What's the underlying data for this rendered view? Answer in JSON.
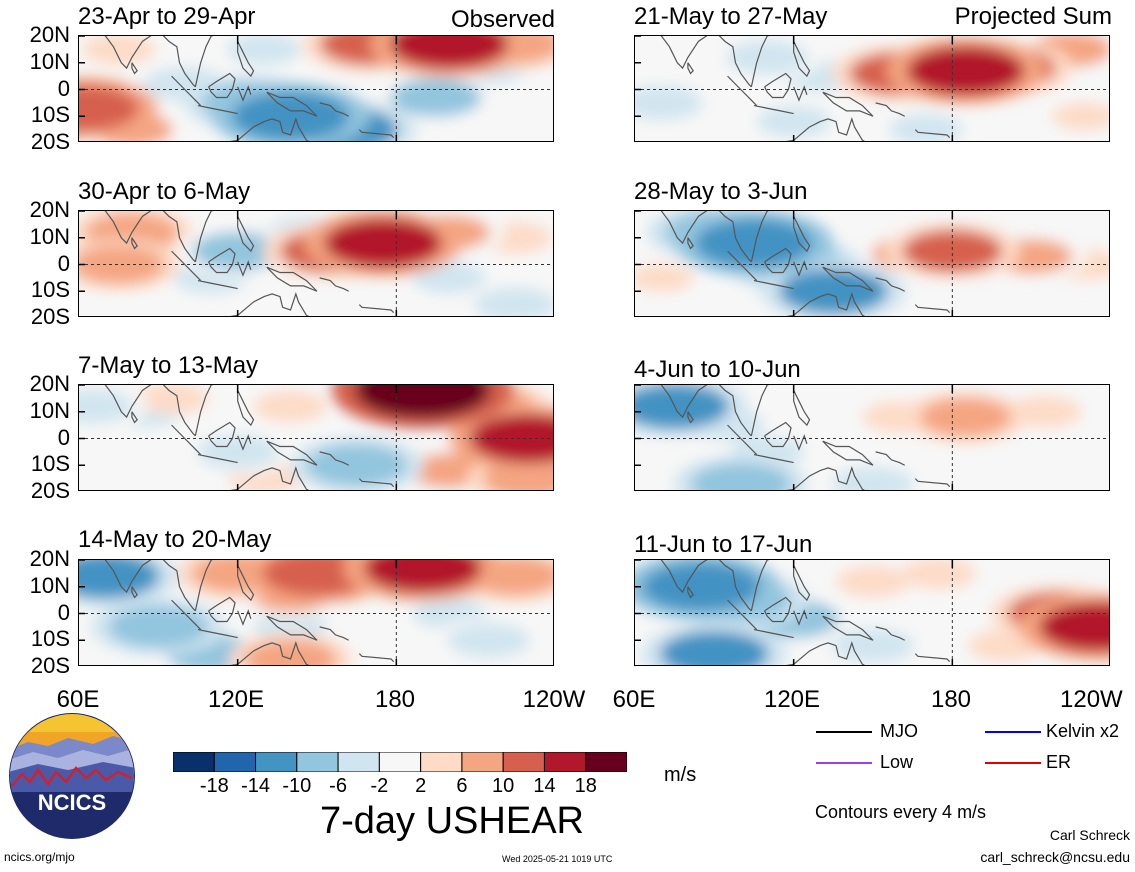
{
  "panels": [
    {
      "title": "23-Apr to 29-Apr",
      "label": "Observed"
    },
    {
      "title": "21-May to 27-May",
      "label": "Projected Sum"
    },
    {
      "title": "30-Apr to 6-May",
      "label": ""
    },
    {
      "title": "28-May to 3-Jun",
      "label": ""
    },
    {
      "title": "7-May to 13-May",
      "label": ""
    },
    {
      "title": "4-Jun to 10-Jun",
      "label": ""
    },
    {
      "title": "14-May to 20-May",
      "label": ""
    },
    {
      "title": "11-Jun to 17-Jun",
      "label": ""
    }
  ],
  "y_ticks": [
    "20N",
    "10N",
    "0",
    "10S",
    "20S"
  ],
  "x_ticks_left": [
    "60E",
    "120E",
    "180",
    "120W"
  ],
  "x_ticks_right": [
    "60E",
    "120E",
    "180",
    "120W"
  ],
  "colorbar": {
    "title": "7-day USHEAR",
    "unit": "m/s",
    "labels": [
      "-18",
      "-14",
      "-10",
      "-6",
      "-2",
      "2",
      "6",
      "10",
      "14",
      "18"
    ],
    "colors": [
      "#08306b",
      "#2166ac",
      "#4393c3",
      "#92c5de",
      "#d1e5f0",
      "#f7f7f7",
      "#fddbc7",
      "#f4a582",
      "#d6604d",
      "#b2182b",
      "#67001f"
    ]
  },
  "legend": {
    "items": [
      {
        "label": "MJO",
        "color": "#000000"
      },
      {
        "label": "Kelvin x2",
        "color": "#0000ff"
      },
      {
        "label": "Low",
        "color": "#a040e0"
      },
      {
        "label": "ER",
        "color": "#e00000"
      }
    ],
    "contours_note": "Contours every 4 m/s"
  },
  "logo": {
    "text": "NCICS"
  },
  "footer": {
    "left": "ncics.org/mjo",
    "center": "Wed 2025-05-21 1019 UTC",
    "author": "Carl Schreck",
    "email": "carl_schreck@ncsu.edu"
  },
  "chart_data": [
    {
      "type": "heatmap",
      "title": "23-Apr to 29-Apr",
      "xlabel": "",
      "ylabel": "",
      "unit": "m/s",
      "xlim": [
        60,
        240
      ],
      "ylim": [
        -20,
        20
      ],
      "anomalies": [
        {
          "lon": 75,
          "lat": 15,
          "value": 4
        },
        {
          "lon": 130,
          "lat": 15,
          "value": -4
        },
        {
          "lon": 170,
          "lat": 17,
          "value": 10
        },
        {
          "lon": 200,
          "lat": 17,
          "value": 14
        },
        {
          "lon": 225,
          "lat": 17,
          "value": 8
        },
        {
          "lon": 62,
          "lat": -7,
          "value": 12
        },
        {
          "lon": 80,
          "lat": -15,
          "value": 6
        },
        {
          "lon": 125,
          "lat": -5,
          "value": -10
        },
        {
          "lon": 140,
          "lat": -10,
          "value": -14
        },
        {
          "lon": 160,
          "lat": -15,
          "value": -12
        },
        {
          "lon": 195,
          "lat": -3,
          "value": -8
        },
        {
          "lon": 215,
          "lat": 8,
          "value": -4
        },
        {
          "lon": 100,
          "lat": 2,
          "value": -6
        }
      ]
    },
    {
      "type": "heatmap",
      "title": "21-May to 27-May",
      "xlabel": "",
      "ylabel": "",
      "unit": "m/s",
      "xlim": [
        60,
        240
      ],
      "ylim": [
        -20,
        20
      ],
      "anomalies": [
        {
          "lon": 75,
          "lat": 15,
          "value": -2
        },
        {
          "lon": 110,
          "lat": 12,
          "value": -6
        },
        {
          "lon": 130,
          "lat": 5,
          "value": -4
        },
        {
          "lon": 160,
          "lat": 6,
          "value": 10
        },
        {
          "lon": 185,
          "lat": 7,
          "value": 14
        },
        {
          "lon": 200,
          "lat": 8,
          "value": 10
        },
        {
          "lon": 225,
          "lat": 15,
          "value": 6
        },
        {
          "lon": 70,
          "lat": -5,
          "value": -6
        },
        {
          "lon": 120,
          "lat": -12,
          "value": -4
        },
        {
          "lon": 170,
          "lat": -15,
          "value": -4
        },
        {
          "lon": 230,
          "lat": -10,
          "value": 2
        }
      ]
    },
    {
      "type": "heatmap",
      "title": "30-Apr to 6-May",
      "xlabel": "",
      "ylabel": "",
      "unit": "m/s",
      "xlim": [
        60,
        240
      ],
      "ylim": [
        -20,
        20
      ],
      "anomalies": [
        {
          "lon": 80,
          "lat": 12,
          "value": 8
        },
        {
          "lon": 75,
          "lat": 0,
          "value": 8
        },
        {
          "lon": 120,
          "lat": 5,
          "value": -8
        },
        {
          "lon": 110,
          "lat": -5,
          "value": -4
        },
        {
          "lon": 155,
          "lat": 5,
          "value": 10
        },
        {
          "lon": 175,
          "lat": 8,
          "value": 14
        },
        {
          "lon": 200,
          "lat": 12,
          "value": 6
        },
        {
          "lon": 225,
          "lat": 10,
          "value": 4
        },
        {
          "lon": 145,
          "lat": 12,
          "value": -4
        },
        {
          "lon": 150,
          "lat": -12,
          "value": -2
        },
        {
          "lon": 200,
          "lat": -5,
          "value": -4
        },
        {
          "lon": 225,
          "lat": -15,
          "value": -6
        }
      ]
    },
    {
      "type": "heatmap",
      "title": "28-May to 3-Jun",
      "xlabel": "",
      "ylabel": "",
      "unit": "m/s",
      "xlim": [
        60,
        240
      ],
      "ylim": [
        -20,
        20
      ],
      "anomalies": [
        {
          "lon": 90,
          "lat": 12,
          "value": -10
        },
        {
          "lon": 105,
          "lat": 8,
          "value": -14
        },
        {
          "lon": 120,
          "lat": 0,
          "value": -10
        },
        {
          "lon": 135,
          "lat": -10,
          "value": -12
        },
        {
          "lon": 165,
          "lat": 4,
          "value": 6
        },
        {
          "lon": 180,
          "lat": 5,
          "value": 10
        },
        {
          "lon": 210,
          "lat": 3,
          "value": 6
        },
        {
          "lon": 230,
          "lat": 0,
          "value": 4
        },
        {
          "lon": 180,
          "lat": -12,
          "value": -2
        },
        {
          "lon": 70,
          "lat": -5,
          "value": 2
        }
      ]
    },
    {
      "type": "heatmap",
      "title": "7-May to 13-May",
      "xlabel": "",
      "ylabel": "",
      "unit": "m/s",
      "xlim": [
        60,
        240
      ],
      "ylim": [
        -20,
        20
      ],
      "anomalies": [
        {
          "lon": 65,
          "lat": 12,
          "value": -6
        },
        {
          "lon": 85,
          "lat": 10,
          "value": -4
        },
        {
          "lon": 95,
          "lat": 15,
          "value": 4
        },
        {
          "lon": 180,
          "lat": 15,
          "value": 6
        },
        {
          "lon": 190,
          "lat": 18,
          "value": 18
        },
        {
          "lon": 215,
          "lat": 12,
          "value": 8
        },
        {
          "lon": 230,
          "lat": 0,
          "value": 14
        },
        {
          "lon": 120,
          "lat": -5,
          "value": -6
        },
        {
          "lon": 165,
          "lat": -10,
          "value": -10
        },
        {
          "lon": 130,
          "lat": -15,
          "value": 4
        },
        {
          "lon": 200,
          "lat": -12,
          "value": 6
        },
        {
          "lon": 230,
          "lat": -15,
          "value": 8
        },
        {
          "lon": 140,
          "lat": 12,
          "value": 4
        }
      ]
    },
    {
      "type": "heatmap",
      "title": "4-Jun to 10-Jun",
      "xlabel": "",
      "ylabel": "",
      "unit": "m/s",
      "xlim": [
        60,
        240
      ],
      "ylim": [
        -20,
        20
      ],
      "anomalies": [
        {
          "lon": 75,
          "lat": 12,
          "value": -12
        },
        {
          "lon": 95,
          "lat": 5,
          "value": -4
        },
        {
          "lon": 110,
          "lat": -5,
          "value": -4
        },
        {
          "lon": 160,
          "lat": 8,
          "value": 4
        },
        {
          "lon": 185,
          "lat": 8,
          "value": 8
        },
        {
          "lon": 215,
          "lat": 10,
          "value": 4
        },
        {
          "lon": 100,
          "lat": -17,
          "value": -10
        },
        {
          "lon": 150,
          "lat": -17,
          "value": -6
        },
        {
          "lon": 225,
          "lat": -15,
          "value": -2
        },
        {
          "lon": 190,
          "lat": 16,
          "value": -2
        }
      ]
    },
    {
      "type": "heatmap",
      "title": "14-May to 20-May",
      "xlabel": "",
      "ylabel": "",
      "unit": "m/s",
      "xlim": [
        60,
        240
      ],
      "ylim": [
        -20,
        20
      ],
      "anomalies": [
        {
          "lon": 70,
          "lat": 14,
          "value": -12
        },
        {
          "lon": 120,
          "lat": 15,
          "value": 8
        },
        {
          "lon": 150,
          "lat": 15,
          "value": 12
        },
        {
          "lon": 190,
          "lat": 17,
          "value": 14
        },
        {
          "lon": 225,
          "lat": 14,
          "value": 8
        },
        {
          "lon": 140,
          "lat": 7,
          "value": 6
        },
        {
          "lon": 90,
          "lat": -5,
          "value": -10
        },
        {
          "lon": 110,
          "lat": -15,
          "value": -8
        },
        {
          "lon": 140,
          "lat": -5,
          "value": -4
        },
        {
          "lon": 140,
          "lat": -17,
          "value": 8
        },
        {
          "lon": 200,
          "lat": 0,
          "value": -4
        },
        {
          "lon": 215,
          "lat": -10,
          "value": -6
        }
      ]
    },
    {
      "type": "heatmap",
      "title": "11-Jun to 17-Jun",
      "xlabel": "",
      "ylabel": "",
      "unit": "m/s",
      "xlim": [
        60,
        240
      ],
      "ylim": [
        -20,
        20
      ],
      "anomalies": [
        {
          "lon": 85,
          "lat": 10,
          "value": -14
        },
        {
          "lon": 100,
          "lat": 5,
          "value": -10
        },
        {
          "lon": 120,
          "lat": -2,
          "value": -8
        },
        {
          "lon": 90,
          "lat": -15,
          "value": -12
        },
        {
          "lon": 150,
          "lat": -12,
          "value": -6
        },
        {
          "lon": 150,
          "lat": 12,
          "value": 4
        },
        {
          "lon": 175,
          "lat": 15,
          "value": 4
        },
        {
          "lon": 220,
          "lat": 0,
          "value": 10
        },
        {
          "lon": 235,
          "lat": -5,
          "value": 14
        },
        {
          "lon": 200,
          "lat": -12,
          "value": 4
        }
      ]
    }
  ]
}
